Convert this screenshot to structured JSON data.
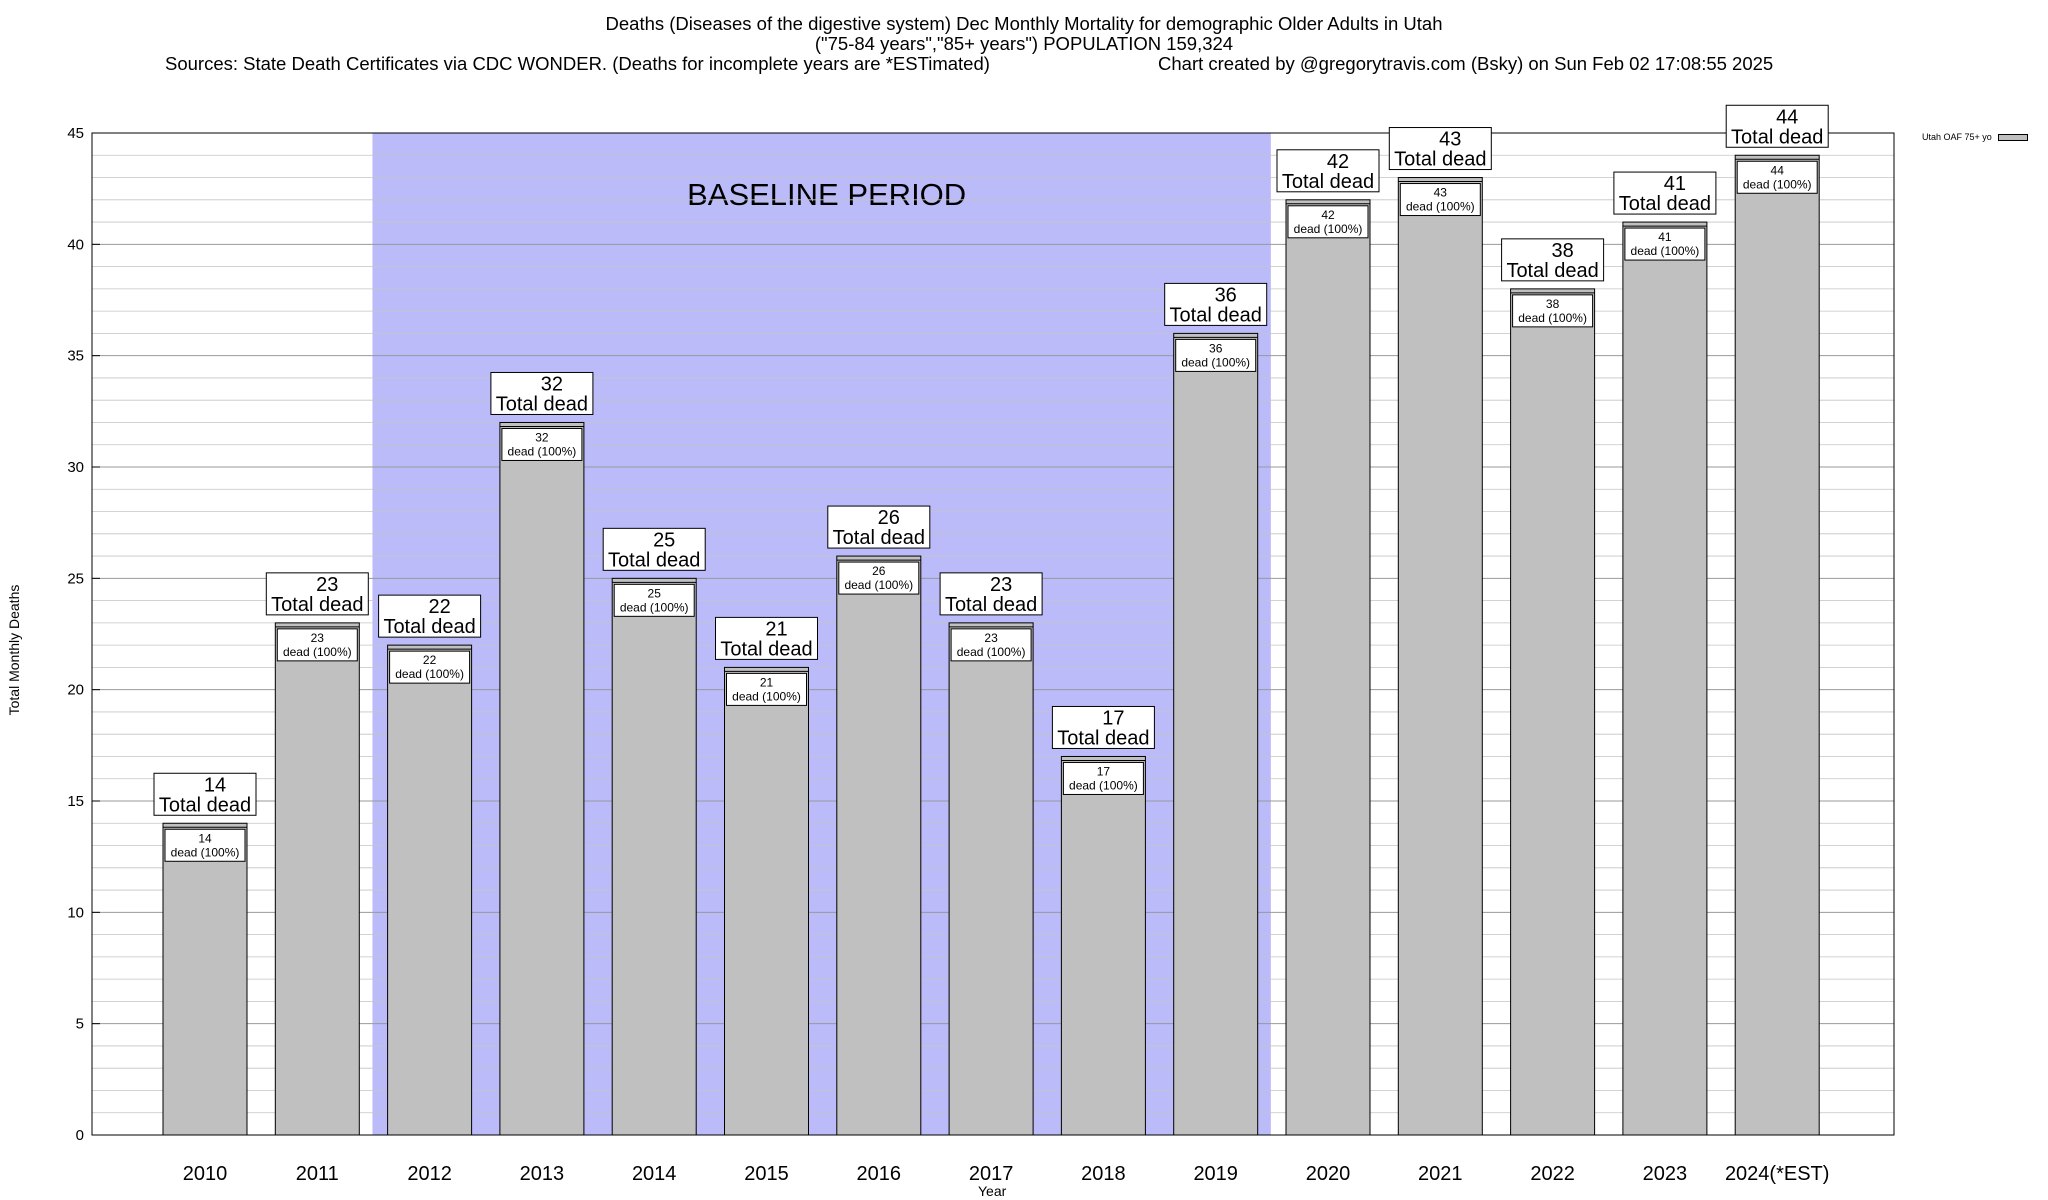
{
  "title": {
    "line1": "Deaths (Diseases of the digestive system) Dec Monthly Mortality for demographic Older Adults in Utah",
    "line2": "(\"75-84 years\",\"85+ years\") POPULATION 159,324",
    "sources": "Sources: State Death Certificates via CDC WONDER. (Deaths for incomplete years are *ESTimated)",
    "credit": "Chart created by @gregorytravis.com (Bsky) on Sun Feb 02 17:08:55 2025"
  },
  "legend": {
    "label": "Utah OAF 75+ yo"
  },
  "colors": {
    "bar": "#c0c0c0",
    "baseline": "#bbbbfa",
    "grid": "#aaaaaa"
  },
  "chart_data": {
    "type": "bar",
    "xlabel": "Year",
    "ylabel": "Total Monthly Deaths",
    "ylim": [
      0,
      45
    ],
    "yticks": [
      0,
      5,
      10,
      15,
      20,
      25,
      30,
      35,
      40,
      45
    ],
    "grid": true,
    "legend_position": "top-right",
    "categories": [
      "2010",
      "2011",
      "2012",
      "2013",
      "2014",
      "2015",
      "2016",
      "2017",
      "2018",
      "2019",
      "2020",
      "2021",
      "2022",
      "2023",
      "2024(*EST)"
    ],
    "series": [
      {
        "name": "Utah OAF 75+ yo",
        "values": [
          14,
          23,
          22,
          32,
          25,
          21,
          26,
          23,
          17,
          36,
          42,
          43,
          38,
          41,
          44
        ]
      }
    ],
    "baseline_period": {
      "label": "BASELINE PERIOD",
      "from": "2012",
      "to": "2019"
    },
    "total_label_suffix": "Total dead",
    "inner_label_suffix": "dead (100%)"
  }
}
